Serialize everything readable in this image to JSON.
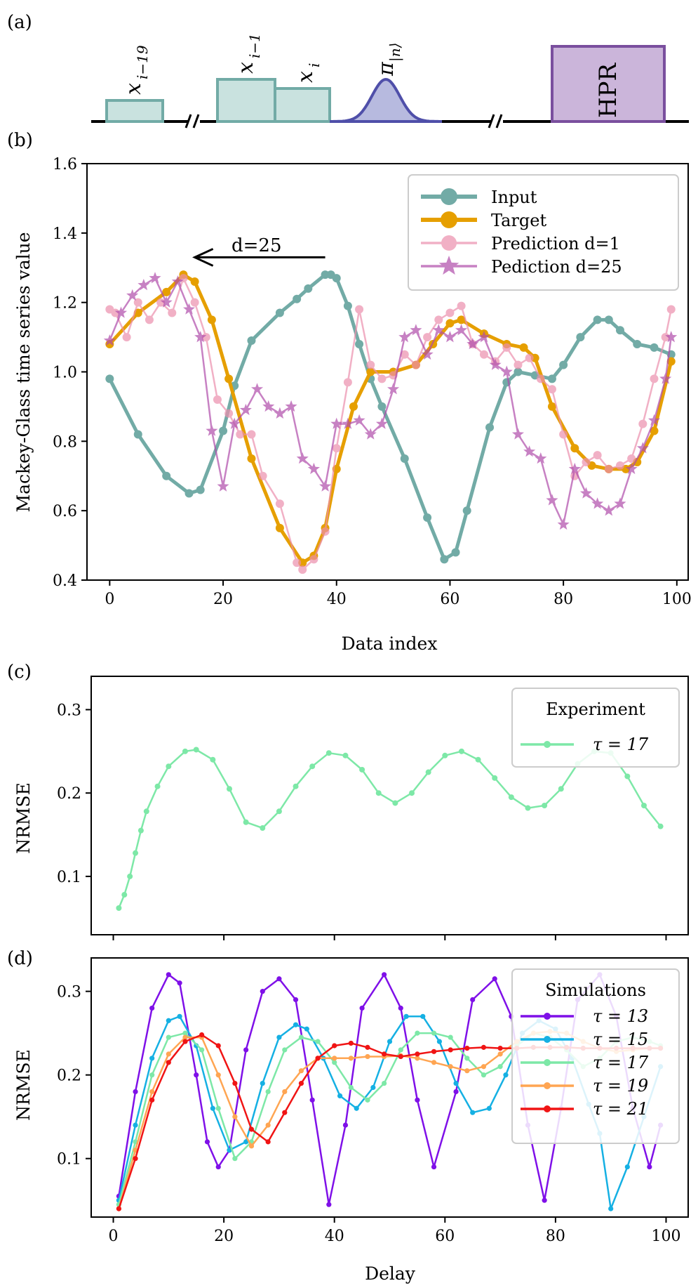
{
  "panels": {
    "a": {
      "label": "(a)",
      "tags": {
        "x19": "x",
        "x19_sub": "i−19",
        "x1": "x",
        "x1_sub": "i−1",
        "xi": "x",
        "xi_sub": "i",
        "pi": "π",
        "pi_sub": "|n⟩",
        "hpr": "HPR"
      },
      "colors": {
        "teal_fill": "#c9e2df",
        "teal_edge": "#72aba6",
        "blue_fill": "#b7badf",
        "blue_edge": "#4f4fa9",
        "hpr_fill": "#cbb5da",
        "hpr_edge": "#7a4f9e"
      }
    },
    "b": {
      "label": "(b)"
    },
    "c": {
      "label": "(c)"
    },
    "d": {
      "label": "(d)"
    }
  },
  "chart_data": [
    {
      "id": "b",
      "type": "line",
      "title": "",
      "xlabel": "Data index",
      "ylabel": "Mackey-Glass time series value",
      "xlim": [
        -4,
        102
      ],
      "ylim": [
        0.4,
        1.6
      ],
      "xticks": [
        "0",
        "20",
        "40",
        "60",
        "80",
        "100"
      ],
      "yticks": [
        "0.4",
        "0.6",
        "0.8",
        "1.0",
        "1.2",
        "1.4",
        "1.6"
      ],
      "legend_position": "top-right",
      "annotation": {
        "text": "d=25",
        "from": [
          38,
          1.33
        ],
        "to": [
          15,
          1.33
        ]
      },
      "series": [
        {
          "name": "Input",
          "color": "#72aba6",
          "marker": "circle",
          "x": [
            0,
            5,
            10,
            14,
            16,
            20,
            22,
            25,
            30,
            33,
            35,
            38,
            39,
            40,
            42,
            44,
            46,
            48,
            52,
            56,
            59,
            61,
            63,
            67,
            70,
            72,
            75,
            78,
            80,
            83,
            86,
            88,
            90,
            93,
            96,
            99
          ],
          "values": [
            0.98,
            0.82,
            0.7,
            0.65,
            0.66,
            0.83,
            0.96,
            1.09,
            1.17,
            1.21,
            1.24,
            1.28,
            1.28,
            1.27,
            1.19,
            1.08,
            0.98,
            0.9,
            0.75,
            0.58,
            0.46,
            0.48,
            0.6,
            0.84,
            0.97,
            1.0,
            0.99,
            0.98,
            1.02,
            1.1,
            1.15,
            1.15,
            1.12,
            1.08,
            1.07,
            1.05
          ]
        },
        {
          "name": "Target",
          "color": "#e69f00",
          "marker": "circle",
          "x": [
            0,
            5,
            10,
            13,
            15,
            18,
            21,
            25,
            30,
            34,
            36,
            38,
            40,
            43,
            46,
            50,
            54,
            57,
            60,
            62,
            66,
            70,
            73,
            75,
            78,
            82,
            85,
            88,
            91,
            93,
            96,
            99
          ],
          "values": [
            1.08,
            1.17,
            1.23,
            1.28,
            1.26,
            1.15,
            0.98,
            0.75,
            0.55,
            0.45,
            0.47,
            0.55,
            0.72,
            0.9,
            1.0,
            1.0,
            1.02,
            1.08,
            1.14,
            1.15,
            1.11,
            1.08,
            1.07,
            1.04,
            0.9,
            0.78,
            0.73,
            0.72,
            0.72,
            0.74,
            0.83,
            1.03
          ]
        },
        {
          "name": "Prediction d=1",
          "color": "#ec8fad",
          "marker": "circle",
          "x": [
            0,
            1,
            3,
            5,
            7,
            9,
            11,
            13,
            15,
            17,
            19,
            21,
            23,
            25,
            27,
            30,
            33,
            34,
            36,
            38,
            40,
            42,
            44,
            46,
            48,
            50,
            52,
            54,
            56,
            58,
            60,
            62,
            64,
            66,
            68,
            70,
            72,
            74,
            76,
            78,
            80,
            82,
            84,
            86,
            88,
            90,
            92,
            94,
            96,
            98,
            99
          ],
          "values": [
            1.18,
            1.17,
            1.1,
            1.2,
            1.15,
            1.2,
            1.17,
            1.27,
            1.2,
            1.1,
            0.92,
            0.88,
            0.82,
            0.82,
            0.7,
            0.62,
            0.45,
            0.43,
            0.46,
            0.54,
            0.78,
            0.97,
            1.18,
            1.02,
            0.98,
            0.99,
            1.05,
            1.02,
            1.1,
            1.15,
            1.17,
            1.19,
            1.08,
            1.05,
            1.03,
            1.07,
            1.02,
            1.04,
            0.98,
            0.95,
            0.82,
            0.7,
            0.74,
            0.76,
            0.72,
            0.73,
            0.75,
            0.85,
            0.98,
            1.1,
            1.18
          ]
        },
        {
          "name": "Pediction d=25",
          "color": "#b04cab",
          "marker": "star",
          "x": [
            0,
            2,
            4,
            6,
            8,
            10,
            12,
            14,
            16,
            18,
            20,
            22,
            24,
            26,
            28,
            30,
            32,
            34,
            36,
            38,
            40,
            42,
            44,
            46,
            48,
            50,
            52,
            54,
            56,
            58,
            60,
            62,
            64,
            66,
            68,
            70,
            72,
            74,
            76,
            78,
            80,
            82,
            84,
            86,
            88,
            90,
            92,
            94,
            96,
            98,
            99
          ],
          "values": [
            1.09,
            1.17,
            1.22,
            1.25,
            1.27,
            1.2,
            1.26,
            1.18,
            1.1,
            0.83,
            0.67,
            0.85,
            0.89,
            0.95,
            0.9,
            0.88,
            0.9,
            0.75,
            0.72,
            0.67,
            0.85,
            0.85,
            0.86,
            0.82,
            0.85,
            0.95,
            1.1,
            1.12,
            1.05,
            1.12,
            1.1,
            1.12,
            1.08,
            1.1,
            1.02,
            1.0,
            0.82,
            0.77,
            0.75,
            0.63,
            0.56,
            0.72,
            0.65,
            0.62,
            0.6,
            0.62,
            0.72,
            0.78,
            0.86,
            0.98,
            1.1
          ]
        }
      ]
    },
    {
      "id": "c",
      "type": "line",
      "title": "",
      "xlabel": "",
      "ylabel": "NRMSE",
      "xlim": [
        -4,
        104
      ],
      "ylim": [
        0.03,
        0.34
      ],
      "yticks": [
        "0.1",
        "0.2",
        "0.3"
      ],
      "legend_position": "top-right",
      "legend_title": "Experiment",
      "series": [
        {
          "name": "τ = 17",
          "color": "#7de8a7",
          "marker": "circle",
          "x": [
            1,
            2,
            3,
            4,
            5,
            6,
            8,
            10,
            13,
            15,
            18,
            21,
            24,
            27,
            30,
            33,
            36,
            39,
            42,
            45,
            48,
            51,
            54,
            57,
            60,
            63,
            66,
            69,
            72,
            75,
            78,
            81,
            84,
            87,
            90,
            93,
            96,
            99
          ],
          "values": [
            0.062,
            0.078,
            0.1,
            0.128,
            0.155,
            0.178,
            0.208,
            0.232,
            0.25,
            0.252,
            0.24,
            0.205,
            0.165,
            0.158,
            0.178,
            0.208,
            0.232,
            0.248,
            0.245,
            0.228,
            0.2,
            0.188,
            0.2,
            0.225,
            0.245,
            0.25,
            0.24,
            0.218,
            0.195,
            0.182,
            0.185,
            0.205,
            0.235,
            0.25,
            0.248,
            0.22,
            0.185,
            0.16
          ]
        }
      ]
    },
    {
      "id": "d",
      "type": "line",
      "title": "",
      "xlabel": "Delay",
      "ylabel": "NRMSE",
      "xlim": [
        -4,
        104
      ],
      "ylim": [
        0.03,
        0.34
      ],
      "xticks": [
        "0",
        "20",
        "40",
        "60",
        "80",
        "100"
      ],
      "yticks": [
        "0.1",
        "0.2",
        "0.3"
      ],
      "legend_position": "top-right",
      "legend_title": "Simulations",
      "series": [
        {
          "name": "τ = 13",
          "color": "#7f10e8",
          "marker": "circle",
          "x": [
            1,
            4,
            7,
            10,
            12,
            15,
            17,
            19,
            21,
            24,
            27,
            30,
            33,
            36,
            39,
            42,
            45,
            49,
            52,
            55,
            58,
            62,
            65,
            69,
            72,
            75,
            78,
            81,
            84,
            88,
            91,
            94,
            97,
            99
          ],
          "values": [
            0.055,
            0.18,
            0.28,
            0.32,
            0.31,
            0.2,
            0.12,
            0.09,
            0.11,
            0.23,
            0.3,
            0.315,
            0.29,
            0.17,
            0.045,
            0.14,
            0.28,
            0.32,
            0.28,
            0.17,
            0.09,
            0.18,
            0.29,
            0.315,
            0.27,
            0.14,
            0.05,
            0.16,
            0.29,
            0.32,
            0.27,
            0.16,
            0.09,
            0.14
          ]
        },
        {
          "name": "τ = 15",
          "color": "#15b0e3",
          "marker": "circle",
          "x": [
            1,
            4,
            7,
            10,
            12,
            15,
            18,
            21,
            24,
            27,
            30,
            33,
            35,
            38,
            41,
            44,
            47,
            50,
            53,
            56,
            59,
            62,
            65,
            68,
            71,
            74,
            77,
            80,
            83,
            86,
            88,
            90,
            93,
            96,
            99
          ],
          "values": [
            0.05,
            0.14,
            0.22,
            0.265,
            0.27,
            0.235,
            0.16,
            0.11,
            0.12,
            0.19,
            0.245,
            0.26,
            0.255,
            0.22,
            0.175,
            0.16,
            0.185,
            0.24,
            0.27,
            0.27,
            0.24,
            0.19,
            0.155,
            0.16,
            0.2,
            0.25,
            0.265,
            0.255,
            0.22,
            0.165,
            0.13,
            0.04,
            0.09,
            0.15,
            0.21
          ]
        },
        {
          "name": "τ = 17",
          "color": "#7de8a7",
          "marker": "circle",
          "x": [
            1,
            4,
            7,
            10,
            13,
            16,
            19,
            22,
            25,
            28,
            31,
            34,
            37,
            40,
            43,
            46,
            49,
            52,
            55,
            58,
            61,
            64,
            67,
            70,
            73,
            76,
            79,
            82,
            85,
            88,
            91,
            94,
            97,
            99
          ],
          "values": [
            0.045,
            0.12,
            0.2,
            0.245,
            0.25,
            0.23,
            0.16,
            0.1,
            0.12,
            0.18,
            0.23,
            0.245,
            0.24,
            0.215,
            0.185,
            0.17,
            0.19,
            0.23,
            0.25,
            0.25,
            0.245,
            0.22,
            0.2,
            0.21,
            0.235,
            0.25,
            0.245,
            0.23,
            0.21,
            0.22,
            0.24,
            0.245,
            0.24,
            0.235
          ]
        },
        {
          "name": "τ = 19",
          "color": "#ffa552",
          "marker": "circle",
          "x": [
            1,
            4,
            7,
            10,
            13,
            16,
            19,
            22,
            25,
            28,
            31,
            34,
            37,
            40,
            43,
            46,
            49,
            52,
            55,
            58,
            61,
            64,
            67,
            70,
            73,
            76,
            79,
            82,
            85,
            88,
            91,
            94,
            97,
            99
          ],
          "values": [
            0.04,
            0.11,
            0.18,
            0.225,
            0.245,
            0.245,
            0.2,
            0.15,
            0.115,
            0.14,
            0.18,
            0.205,
            0.22,
            0.22,
            0.22,
            0.222,
            0.222,
            0.223,
            0.22,
            0.215,
            0.21,
            0.205,
            0.21,
            0.225,
            0.24,
            0.25,
            0.252,
            0.25,
            0.24,
            0.232,
            0.228,
            0.23,
            0.232,
            0.232
          ]
        },
        {
          "name": "τ = 21",
          "color": "#f01414",
          "marker": "circle",
          "x": [
            1,
            4,
            7,
            10,
            13,
            16,
            19,
            22,
            25,
            28,
            31,
            34,
            37,
            40,
            43,
            46,
            49,
            52,
            55,
            58,
            61,
            64,
            67,
            70,
            73,
            76,
            79,
            82,
            85,
            88,
            91,
            94,
            97,
            99
          ],
          "values": [
            0.04,
            0.1,
            0.17,
            0.215,
            0.24,
            0.248,
            0.235,
            0.19,
            0.135,
            0.12,
            0.155,
            0.19,
            0.22,
            0.235,
            0.238,
            0.233,
            0.225,
            0.222,
            0.225,
            0.228,
            0.23,
            0.232,
            0.233,
            0.232,
            0.232,
            0.233,
            0.233,
            0.233,
            0.232,
            0.232,
            0.232,
            0.232,
            0.232,
            0.232
          ]
        }
      ]
    }
  ]
}
